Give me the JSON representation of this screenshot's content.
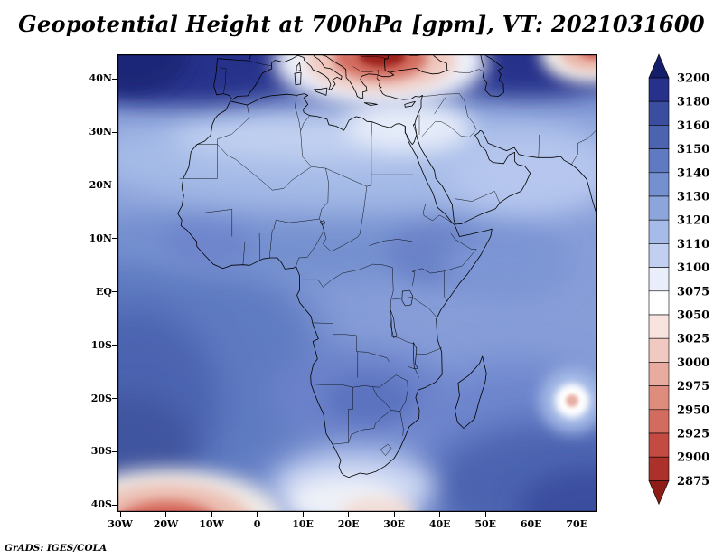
{
  "title": "Geopotential Height at 700hPa [gpm], VT: 2021031600",
  "credit": "GrADS: IGES/COLA",
  "chart_data": {
    "type": "heatmap",
    "subtype": "filled-contour-map",
    "title": "Geopotential Height at 700hPa [gpm], VT: 2021031600",
    "variable": "Geopotential Height",
    "pressure_level": "700hPa",
    "units": "gpm",
    "valid_time": "2021031600",
    "grid": false,
    "x_tick_labels": [
      "30W",
      "20W",
      "10W",
      "0",
      "10E",
      "20E",
      "30E",
      "40E",
      "50E",
      "60E",
      "70E"
    ],
    "x_tick_values": [
      -30,
      -20,
      -10,
      0,
      10,
      20,
      30,
      40,
      50,
      60,
      70
    ],
    "y_tick_labels": [
      "40N",
      "30N",
      "20N",
      "10N",
      "EQ",
      "10S",
      "20S",
      "30S",
      "40S"
    ],
    "y_tick_values": [
      40,
      30,
      20,
      10,
      0,
      -10,
      -20,
      -30,
      -40
    ],
    "lon_range": [
      -30.6,
      74.5
    ],
    "lat_range": [
      -41.3,
      44.6
    ],
    "colorbar": {
      "orientation": "vertical-right",
      "arrow_ends": true,
      "labels_top_to_bottom": [
        3200,
        3180,
        3160,
        3150,
        3140,
        3130,
        3120,
        3110,
        3100,
        3075,
        3050,
        3025,
        3000,
        2975,
        2950,
        2925,
        2900,
        2875
      ],
      "colors_top_to_bottom": [
        "#141e6b",
        "#27308a",
        "#3a4d9f",
        "#4c63b0",
        "#5f7ac1",
        "#7590cf",
        "#8ca6dc",
        "#a6bbe7",
        "#c1d0f0",
        "#e9eefa",
        "#ffffff",
        "#f8e3de",
        "#f0c9c0",
        "#e7ab9f",
        "#dd8c7e",
        "#d26c5e",
        "#c44b41",
        "#ac312a",
        "#8e1c16"
      ]
    },
    "field_features": [
      "Deep red minimum (below 2900 gpm) centered over the Balkans/Aegean/Turkey near 25-35E, 38-45N, ringed by white then blue",
      "Red minimum clipped at the far southwest corner near 20W, south of 40S",
      "Small circular minimum (tropical cyclone) with white ring and pink core near 70E, 20S east of Madagascar",
      "Dark blue maximum band (3160-3200 gpm) along the northern edge of the domain, 35-45N",
      "Smaller red minimum at the top-right corner near 73E, 44N",
      "Pale band (3100-3120 gpm) across the Sahara and Arabia near 22-32N",
      "Broad 3120-3140 gpm field over equatorial Africa and adjacent oceans",
      "Darker blue 3150-3170 gpm areas over the South Atlantic, southern Africa interior and southwest Indian Ocean",
      "Pale/white band south of South Africa near 35-40S, 15-35E"
    ]
  }
}
